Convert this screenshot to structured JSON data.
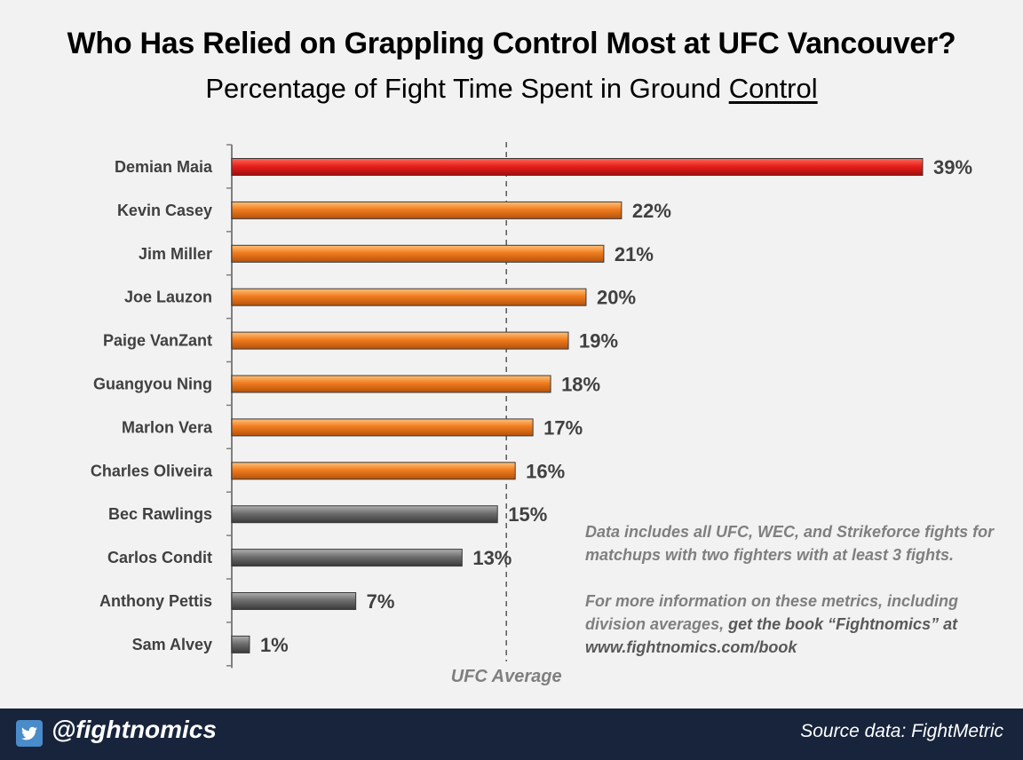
{
  "title": "Who Has Relied on Grappling Control Most at UFC Vancouver?",
  "subtitle_prefix": "Percentage of Fight Time Spent in Ground ",
  "subtitle_emphasis": "Control",
  "chart_data": {
    "type": "bar",
    "orientation": "horizontal",
    "title": "Who Has Relied on Grappling Control Most at UFC Vancouver?",
    "subtitle": "Percentage of Fight Time Spent in Ground Control",
    "categories": [
      "Demian Maia",
      "Kevin Casey",
      "Jim Miller",
      "Joe Lauzon",
      "Paige VanZant",
      "Guangyou Ning",
      "Marlon Vera",
      "Charles Oliveira",
      "Bec Rawlings",
      "Carlos Condit",
      "Anthony Pettis",
      "Sam Alvey"
    ],
    "values": [
      39,
      22,
      21,
      20,
      19,
      18,
      17,
      16,
      15,
      13,
      7,
      1
    ],
    "labels": [
      "39%",
      "22%",
      "21%",
      "20%",
      "19%",
      "18%",
      "17%",
      "16%",
      "15%",
      "13%",
      "7%",
      "1%"
    ],
    "bar_colors": [
      "#e8201c",
      "#f07c1e",
      "#f07c1e",
      "#f07c1e",
      "#f07c1e",
      "#f07c1e",
      "#f07c1e",
      "#f07c1e",
      "#6e6e6e",
      "#6e6e6e",
      "#6e6e6e",
      "#6e6e6e"
    ],
    "reference_line": {
      "value": 15.5,
      "label": "UFC Average"
    },
    "xlim": [
      0,
      39
    ],
    "xlabel": "",
    "ylabel": ""
  },
  "notes": {
    "line1": "Data includes all UFC, WEC, and Strikeforce fights for",
    "line2": "matchups with two fighters with at least 3 fights.",
    "line3": "For more information on these metrics, including",
    "line4_prefix": "division averages, ",
    "line4_bold": "get the book “Fightnomics” at",
    "line5_bold": "www.fightnomics.com/book"
  },
  "footer": {
    "handle": "@fightnomics",
    "source": "Source data: FightMetric",
    "icon": "twitter-icon",
    "bg_color": "#17243b"
  }
}
